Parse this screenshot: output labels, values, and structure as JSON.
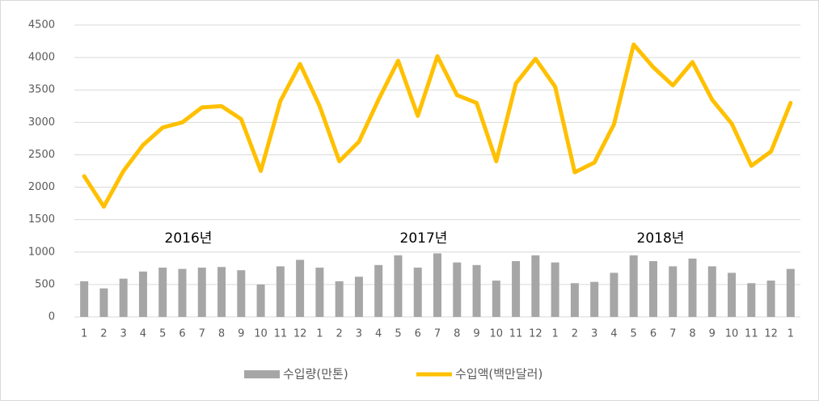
{
  "chart_data": {
    "type": "combo",
    "categories": [
      "1",
      "2",
      "3",
      "4",
      "5",
      "6",
      "7",
      "8",
      "9",
      "10",
      "11",
      "12",
      "1",
      "2",
      "3",
      "4",
      "5",
      "6",
      "7",
      "8",
      "9",
      "10",
      "11",
      "12",
      "1",
      "2",
      "3",
      "4",
      "5",
      "6",
      "7",
      "8",
      "9",
      "10",
      "11",
      "12",
      "1"
    ],
    "series": [
      {
        "name": "수입량(만톤)",
        "type": "bar",
        "color": "#a6a6a6",
        "values": [
          550,
          440,
          590,
          700,
          760,
          740,
          760,
          770,
          720,
          500,
          780,
          880,
          760,
          550,
          620,
          800,
          950,
          760,
          980,
          840,
          800,
          560,
          860,
          950,
          840,
          520,
          540,
          680,
          950,
          860,
          780,
          900,
          780,
          680,
          520,
          560,
          740
        ]
      },
      {
        "name": "수입액(백만달러)",
        "type": "line",
        "color": "#ffc000",
        "values": [
          2170,
          1700,
          2250,
          2650,
          2920,
          3000,
          3230,
          3250,
          3050,
          2250,
          3330,
          3900,
          3250,
          2400,
          2700,
          3350,
          3950,
          3100,
          4020,
          3420,
          3300,
          2400,
          3600,
          3980,
          3550,
          2230,
          2380,
          2970,
          4200,
          3850,
          3570,
          3930,
          3350,
          2980,
          2330,
          2550,
          3300
        ]
      }
    ],
    "annotations": [
      "2016년",
      "2017년",
      "2018년"
    ],
    "ylim": [
      0,
      4500
    ],
    "yticks": [
      0,
      500,
      1000,
      1500,
      2000,
      2500,
      3000,
      3500,
      4000,
      4500
    ],
    "grid": true
  }
}
